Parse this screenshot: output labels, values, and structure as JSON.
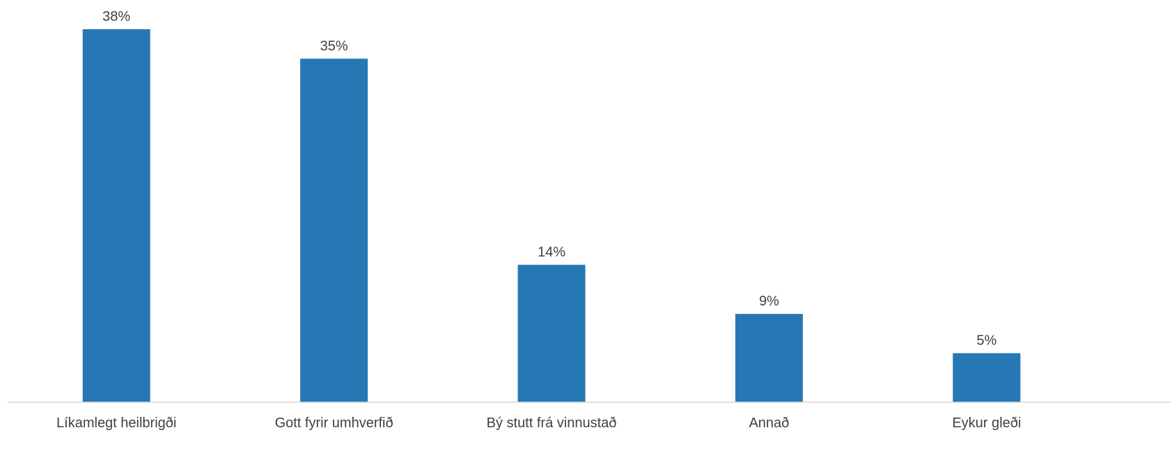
{
  "chart_data": {
    "type": "bar",
    "categories": [
      "Líkamlegt heilbrigði",
      "Gott fyrir umhverfið",
      "Bý stutt frá vinnustað",
      "Annað",
      "Eykur gleði"
    ],
    "values": [
      38,
      35,
      14,
      9,
      5
    ],
    "value_labels": [
      "38%",
      "35%",
      "14%",
      "9%",
      "5%"
    ],
    "unit": "%",
    "ylim": [
      0,
      38
    ],
    "grid": false,
    "legend": "none",
    "colors": {
      "bar": "#2678B4",
      "axis": "#D9D9D9",
      "text": "#404040"
    }
  }
}
